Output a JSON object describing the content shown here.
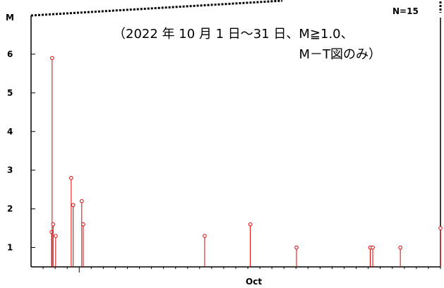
{
  "chart_data": {
    "type": "scatter",
    "subtype": "stem",
    "title": "",
    "xlabel": "",
    "ylabel": "M",
    "count_label": "N=15",
    "annotation": [
      "（2022 年 10 月 1 日～31 日、M≧1.0、",
      "M－T図のみ）"
    ],
    "x_tick_labels": [
      "Oct"
    ],
    "xlim": [
      "2022-09-27",
      "2022-10-31"
    ],
    "ylim": [
      0.5,
      7
    ],
    "y_ticks": [
      1,
      2,
      3,
      4,
      5,
      6
    ],
    "grid": false,
    "color": "#e00000",
    "points": [
      {
        "x": "2022-09-28T17:00",
        "y": 1.4
      },
      {
        "x": "2022-09-28T18:00",
        "y": 5.9
      },
      {
        "x": "2022-09-28T20:00",
        "y": 1.6
      },
      {
        "x": "2022-09-29T01:00",
        "y": 1.3
      },
      {
        "x": "2022-09-30T08:00",
        "y": 2.8
      },
      {
        "x": "2022-09-30T12:00",
        "y": 2.1
      },
      {
        "x": "2022-10-01T05:00",
        "y": 2.2
      },
      {
        "x": "2022-10-01T08:00",
        "y": 1.6
      },
      {
        "x": "2022-10-11T10:00",
        "y": 1.3
      },
      {
        "x": "2022-10-15T05:00",
        "y": 1.6
      },
      {
        "x": "2022-10-19T01:00",
        "y": 1.0
      },
      {
        "x": "2022-10-25T04:00",
        "y": 1.0
      },
      {
        "x": "2022-10-25T09:00",
        "y": 1.0
      },
      {
        "x": "2022-10-27T16:00",
        "y": 1.0
      },
      {
        "x": "2022-10-31T00:00",
        "y": 1.5
      }
    ]
  }
}
